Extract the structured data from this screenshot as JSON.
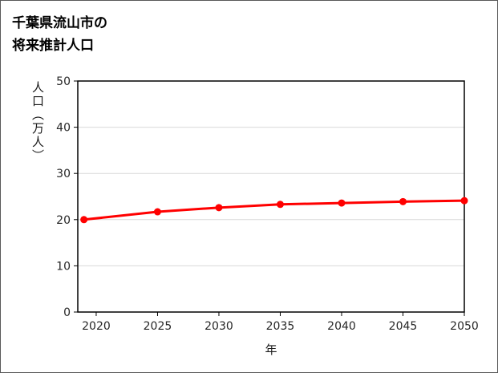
{
  "page": {
    "background": "#ffffff",
    "border_color": "#595959"
  },
  "chart_data": {
    "type": "line",
    "title_line1": "千葉県流山市の",
    "title_line2": "将来推計人口",
    "xlabel": "年",
    "ylabel": "人口（万人）",
    "series": [
      {
        "color": "#ff0000",
        "marker": "circle",
        "x": [
          2019,
          2025,
          2030,
          2035,
          2040,
          2045,
          2050
        ],
        "values": [
          20.0,
          21.7,
          22.6,
          23.3,
          23.6,
          23.9,
          24.1
        ]
      }
    ],
    "xlim": [
      2018.5,
      2050
    ],
    "ylim": [
      0,
      50
    ],
    "xticks": [
      2020,
      2025,
      2030,
      2035,
      2040,
      2045,
      2050
    ],
    "yticks": [
      0,
      10,
      20,
      30,
      40,
      50
    ],
    "grid": "horizontal",
    "grid_color": "#d9d9d9",
    "axis_color": "#000000",
    "tick_label_color": "#262626",
    "legend": "none"
  }
}
